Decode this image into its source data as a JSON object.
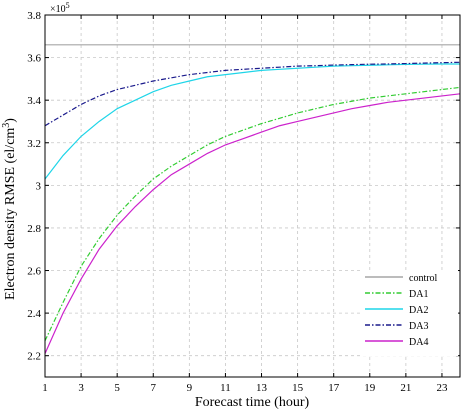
{
  "chart_data": {
    "type": "line",
    "xlabel": "Forecast time (hour)",
    "ylabel": "Electron density RMSE (el/cm³)",
    "ylabel_main": "Electron density RMSE (el/cm",
    "ylabel_sup": "3",
    "ylabel_close": ")",
    "multiplier_base": "×10",
    "multiplier_exp": "5",
    "xlim": [
      1,
      24
    ],
    "ylim": [
      2.1,
      3.8
    ],
    "xticks": [
      1,
      3,
      5,
      7,
      9,
      11,
      13,
      15,
      17,
      19,
      21,
      23
    ],
    "yticks": [
      2.2,
      2.4,
      2.6,
      2.8,
      3,
      3.2,
      3.4,
      3.6,
      3.8
    ],
    "ytick_labels": [
      "2.2",
      "2.4",
      "2.6",
      "2.8",
      "3",
      "3.2",
      "3.4",
      "3.6",
      "3.8"
    ],
    "grid": true,
    "legend_position": "bottom-right",
    "x": [
      1,
      2,
      3,
      4,
      5,
      6,
      7,
      8,
      9,
      10,
      11,
      12,
      13,
      14,
      15,
      16,
      17,
      18,
      19,
      20,
      21,
      22,
      23,
      24
    ],
    "series": [
      {
        "name": "control",
        "color": "#a6a6a6",
        "dash": "solid",
        "values": [
          3.66,
          3.66,
          3.66,
          3.66,
          3.66,
          3.66,
          3.66,
          3.66,
          3.66,
          3.66,
          3.66,
          3.66,
          3.66,
          3.66,
          3.66,
          3.66,
          3.66,
          3.66,
          3.66,
          3.66,
          3.66,
          3.66,
          3.66,
          3.66
        ]
      },
      {
        "name": "DA1",
        "color": "#33cc33",
        "dash": "dashdot",
        "values": [
          2.27,
          2.45,
          2.62,
          2.75,
          2.86,
          2.95,
          3.03,
          3.09,
          3.14,
          3.19,
          3.23,
          3.26,
          3.29,
          3.315,
          3.34,
          3.36,
          3.38,
          3.395,
          3.41,
          3.42,
          3.43,
          3.44,
          3.45,
          3.46
        ]
      },
      {
        "name": "DA2",
        "color": "#1fd5e8",
        "dash": "solid",
        "values": [
          3.03,
          3.14,
          3.23,
          3.3,
          3.36,
          3.4,
          3.44,
          3.47,
          3.49,
          3.51,
          3.52,
          3.53,
          3.54,
          3.545,
          3.55,
          3.555,
          3.56,
          3.562,
          3.564,
          3.566,
          3.568,
          3.569,
          3.57,
          3.57
        ]
      },
      {
        "name": "DA3",
        "color": "#1a1a8c",
        "dash": "dashdot",
        "values": [
          3.28,
          3.33,
          3.38,
          3.42,
          3.45,
          3.47,
          3.49,
          3.505,
          3.52,
          3.53,
          3.54,
          3.545,
          3.55,
          3.555,
          3.56,
          3.562,
          3.565,
          3.567,
          3.569,
          3.57,
          3.572,
          3.574,
          3.576,
          3.578
        ]
      },
      {
        "name": "DA4",
        "color": "#cc22cc",
        "dash": "solid",
        "values": [
          2.21,
          2.4,
          2.56,
          2.7,
          2.81,
          2.9,
          2.98,
          3.05,
          3.1,
          3.15,
          3.19,
          3.22,
          3.25,
          3.28,
          3.3,
          3.32,
          3.34,
          3.36,
          3.375,
          3.39,
          3.4,
          3.41,
          3.42,
          3.43
        ]
      }
    ]
  }
}
